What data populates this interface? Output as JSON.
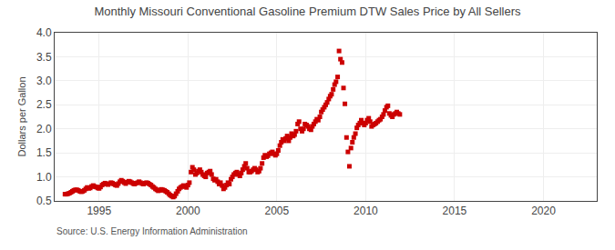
{
  "chart_data": {
    "type": "scatter",
    "title": "Monthly Missouri Conventional Gasoline Premium DTW Sales Price by All Sellers",
    "ylabel": "Dollars per Gallon",
    "annotations": [
      "Source: U.S. Energy Information Administration"
    ],
    "color": "#cc0000",
    "marker": "square",
    "grid": true,
    "xlim": [
      1992.5,
      2023.0
    ],
    "xticks": [
      1995,
      2000,
      2005,
      2010,
      2015,
      2020
    ],
    "ylim": [
      0.5,
      4.0
    ],
    "yticks": [
      0.5,
      {
        "value": 1.0,
        "label": "1.0"
      },
      1.5,
      {
        "value": 2.0,
        "label": "2.0"
      },
      2.5,
      {
        "value": 3.0,
        "label": "3.0"
      },
      3.5,
      {
        "value": 4.0,
        "label": "4.0"
      }
    ],
    "x": [
      1993.08,
      1993.17,
      1993.25,
      1993.33,
      1993.42,
      1993.5,
      1993.58,
      1993.67,
      1993.75,
      1993.83,
      1993.92,
      1994.0,
      1994.08,
      1994.17,
      1994.25,
      1994.33,
      1994.42,
      1994.5,
      1994.58,
      1994.67,
      1994.75,
      1994.83,
      1994.92,
      1995.0,
      1995.08,
      1995.17,
      1995.25,
      1995.33,
      1995.42,
      1995.5,
      1995.58,
      1995.67,
      1995.75,
      1995.83,
      1995.92,
      1996.0,
      1996.08,
      1996.17,
      1996.25,
      1996.33,
      1996.42,
      1996.5,
      1996.58,
      1996.67,
      1996.75,
      1996.83,
      1996.92,
      1997.0,
      1997.08,
      1997.17,
      1997.25,
      1997.33,
      1997.42,
      1997.5,
      1997.58,
      1997.67,
      1997.75,
      1997.83,
      1997.92,
      1998.0,
      1998.08,
      1998.17,
      1998.25,
      1998.33,
      1998.42,
      1998.5,
      1998.58,
      1998.67,
      1998.75,
      1998.83,
      1998.92,
      1999.0,
      1999.08,
      1999.17,
      1999.25,
      1999.33,
      1999.42,
      1999.5,
      1999.58,
      1999.67,
      1999.75,
      1999.83,
      1999.92,
      2000.0,
      2000.08,
      2000.17,
      2000.25,
      2000.33,
      2000.42,
      2000.5,
      2000.58,
      2000.67,
      2000.75,
      2000.83,
      2000.92,
      2001.0,
      2001.08,
      2001.17,
      2001.25,
      2001.33,
      2001.42,
      2001.5,
      2001.58,
      2001.67,
      2001.75,
      2001.83,
      2001.92,
      2002.0,
      2002.08,
      2002.17,
      2002.25,
      2002.33,
      2002.42,
      2002.5,
      2002.58,
      2002.67,
      2002.75,
      2002.83,
      2002.92,
      2003.0,
      2003.08,
      2003.17,
      2003.25,
      2003.33,
      2003.42,
      2003.5,
      2003.58,
      2003.67,
      2003.75,
      2003.83,
      2003.92,
      2004.0,
      2004.08,
      2004.17,
      2004.25,
      2004.33,
      2004.42,
      2004.5,
      2004.58,
      2004.67,
      2004.75,
      2004.83,
      2004.92,
      2005.0,
      2005.08,
      2005.17,
      2005.25,
      2005.33,
      2005.42,
      2005.5,
      2005.58,
      2005.67,
      2005.75,
      2005.83,
      2005.92,
      2006.0,
      2006.08,
      2006.17,
      2006.25,
      2006.33,
      2006.42,
      2006.5,
      2006.58,
      2006.67,
      2006.75,
      2006.83,
      2006.92,
      2007.0,
      2007.08,
      2007.17,
      2007.25,
      2007.33,
      2007.42,
      2007.5,
      2007.58,
      2007.67,
      2007.75,
      2007.83,
      2007.92,
      2008.0,
      2008.08,
      2008.17,
      2008.25,
      2008.33,
      2008.42,
      2008.5,
      2008.58,
      2008.67,
      2008.75,
      2008.83,
      2008.92,
      2009.0,
      2009.08,
      2009.17,
      2009.25,
      2009.33,
      2009.42,
      2009.5,
      2009.58,
      2009.67,
      2009.75,
      2009.83,
      2009.92,
      2010.0,
      2010.08,
      2010.17,
      2010.25,
      2010.33,
      2010.42,
      2010.5,
      2010.58,
      2010.67,
      2010.75,
      2010.83,
      2010.92,
      2011.0,
      2011.08,
      2011.17,
      2011.25,
      2011.33,
      2011.42,
      2011.5,
      2011.58,
      2011.67,
      2011.75,
      2011.83,
      2011.92
    ],
    "values": [
      0.64,
      0.64,
      0.65,
      0.66,
      0.68,
      0.7,
      0.72,
      0.73,
      0.73,
      0.72,
      0.7,
      0.69,
      0.7,
      0.72,
      0.75,
      0.78,
      0.76,
      0.77,
      0.8,
      0.82,
      0.8,
      0.79,
      0.77,
      0.76,
      0.79,
      0.83,
      0.85,
      0.87,
      0.85,
      0.84,
      0.86,
      0.88,
      0.87,
      0.85,
      0.83,
      0.82,
      0.86,
      0.9,
      0.93,
      0.91,
      0.88,
      0.86,
      0.89,
      0.91,
      0.9,
      0.88,
      0.86,
      0.85,
      0.87,
      0.88,
      0.9,
      0.88,
      0.86,
      0.85,
      0.87,
      0.88,
      0.87,
      0.85,
      0.83,
      0.8,
      0.78,
      0.75,
      0.73,
      0.71,
      0.72,
      0.74,
      0.73,
      0.72,
      0.7,
      0.68,
      0.65,
      0.62,
      0.6,
      0.58,
      0.6,
      0.65,
      0.7,
      0.75,
      0.78,
      0.8,
      0.82,
      0.8,
      0.78,
      0.83,
      0.88,
      1.1,
      1.2,
      1.15,
      1.05,
      1.08,
      1.12,
      1.15,
      1.1,
      1.05,
      1.02,
      1.0,
      1.08,
      1.1,
      1.12,
      1.05,
      0.96,
      0.93,
      0.95,
      0.9,
      0.85,
      0.88,
      0.82,
      0.75,
      0.78,
      0.83,
      0.88,
      0.85,
      0.95,
      1.0,
      1.05,
      1.08,
      1.1,
      1.05,
      1.02,
      1.08,
      1.15,
      1.22,
      1.28,
      1.18,
      1.1,
      1.1,
      1.12,
      1.15,
      1.18,
      1.15,
      1.1,
      1.12,
      1.18,
      1.28,
      1.4,
      1.45,
      1.42,
      1.44,
      1.48,
      1.5,
      1.52,
      1.48,
      1.45,
      1.48,
      1.55,
      1.65,
      1.72,
      1.78,
      1.75,
      1.8,
      1.85,
      1.75,
      1.82,
      1.9,
      1.85,
      1.88,
      1.95,
      2.1,
      2.15,
      2.0,
      1.95,
      2.0,
      2.1,
      2.08,
      2.05,
      2.0,
      1.98,
      2.05,
      2.1,
      2.15,
      2.2,
      2.18,
      2.25,
      2.35,
      2.4,
      2.45,
      2.5,
      2.55,
      2.62,
      2.68,
      2.72,
      2.82,
      2.92,
      2.98,
      3.08,
      3.62,
      3.45,
      3.38,
      2.85,
      2.52,
      1.82,
      1.52,
      1.22,
      1.6,
      1.72,
      1.82,
      1.9,
      2.02,
      2.08,
      2.12,
      2.18,
      2.12,
      2.08,
      2.12,
      2.18,
      2.22,
      2.15,
      2.05,
      2.08,
      2.1,
      2.12,
      2.15,
      2.18,
      2.2,
      2.25,
      2.3,
      2.38,
      2.45,
      2.48,
      2.32,
      2.28,
      2.25,
      2.3,
      2.32,
      2.35,
      2.32,
      2.3
    ]
  }
}
